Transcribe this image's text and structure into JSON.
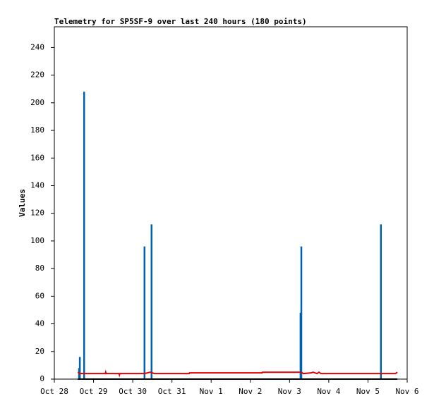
{
  "chart_data": {
    "type": "line",
    "title": "Telemetry for SP5SF-9 over last 240 hours (180 points)",
    "y_label": "Values",
    "xlim": [
      0,
      9
    ],
    "xticks": [
      {
        "value": 0,
        "label": "Oct 28"
      },
      {
        "value": 1,
        "label": "Oct 29"
      },
      {
        "value": 2,
        "label": "Oct 30"
      },
      {
        "value": 3,
        "label": "Oct 31"
      },
      {
        "value": 4,
        "label": "Nov 1"
      },
      {
        "value": 5,
        "label": "Nov 2"
      },
      {
        "value": 6,
        "label": "Nov 3"
      },
      {
        "value": 7,
        "label": "Nov 4"
      },
      {
        "value": 8,
        "label": "Nov 5"
      },
      {
        "value": 9,
        "label": "Nov 6"
      }
    ],
    "ylim": [
      0,
      255
    ],
    "yticks": [
      0,
      20,
      40,
      60,
      80,
      100,
      120,
      140,
      160,
      180,
      200,
      220,
      240
    ],
    "series": [
      {
        "color": "#0060b0",
        "style": "impulse",
        "x": [
          0.63,
          0.65,
          0.76,
          2.3,
          2.48,
          6.28,
          6.3,
          8.33
        ],
        "values": [
          8,
          16,
          208,
          96,
          112,
          48,
          96,
          112
        ]
      },
      {
        "color": "#000000",
        "style": "line",
        "x": [
          0.6,
          8.75
        ],
        "values": [
          0,
          0
        ]
      },
      {
        "color": "#e00000",
        "style": "line",
        "x": [
          0.6,
          0.65,
          1.3,
          1.31,
          1.32,
          1.65,
          1.66,
          1.67,
          2.3,
          2.45,
          2.55,
          3.44,
          3.45,
          5.3,
          5.31,
          6.3,
          6.35,
          6.55,
          6.6,
          6.7,
          6.75,
          6.8,
          6.85,
          8.7,
          8.75
        ],
        "values": [
          5,
          4,
          4,
          5,
          4,
          4,
          3,
          4,
          4,
          5,
          4,
          4,
          4.5,
          4.5,
          5,
          5,
          4,
          4.5,
          5,
          4,
          5,
          4,
          4,
          4,
          5
        ]
      }
    ]
  }
}
